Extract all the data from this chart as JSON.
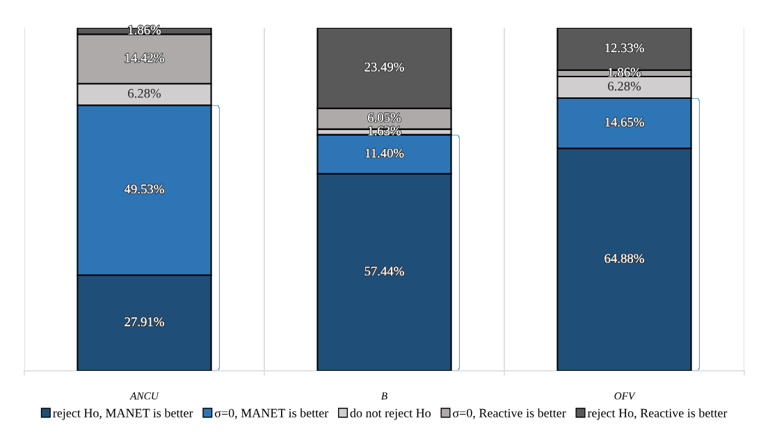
{
  "chart_data": {
    "type": "bar",
    "stacked": true,
    "categories": [
      "ANCU",
      "B",
      "OFV"
    ],
    "series": [
      {
        "name": "reject Ho, MANET is better",
        "color": "#1f4e79",
        "values": [
          27.91,
          57.44,
          64.88
        ],
        "value_labels": [
          "27.91%",
          "57.44%",
          "64.88%"
        ]
      },
      {
        "name": "σ=0, MANET is better",
        "color": "#2e75b6",
        "values": [
          49.53,
          11.4,
          14.65
        ],
        "value_labels": [
          "49.53%",
          "11.40%",
          "14.65%"
        ]
      },
      {
        "name": "do not reject Ho",
        "color": "#d0cece",
        "values": [
          6.28,
          1.63,
          6.28
        ],
        "value_labels": [
          "6.28%",
          "1.63%",
          "6.28%"
        ]
      },
      {
        "name": "σ=0, Reactive is better",
        "color": "#aeaaaa",
        "values": [
          14.42,
          6.05,
          1.86
        ],
        "value_labels": [
          "14.42%",
          "6.05%",
          "1.86%"
        ]
      },
      {
        "name": "reject Ho, Reactive is better",
        "color": "#595959",
        "values": [
          1.86,
          23.49,
          12.33
        ],
        "value_labels": [
          "1.86%",
          "23.49%",
          "12.33%"
        ]
      }
    ],
    "grid": "x",
    "legend": "bottom",
    "tick_labels": "x"
  }
}
